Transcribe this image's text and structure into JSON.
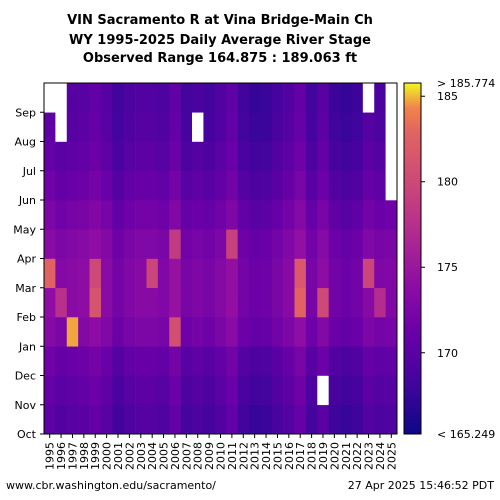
{
  "chart_data": {
    "type": "heatmap",
    "title_lines": [
      "VIN Sacramento R at Vina Bridge-Main Ch",
      "WY 1995-2025 Daily Average River Stage",
      "Observed Range 164.875 : 189.063 ft"
    ],
    "x_categories": [
      "1995",
      "1996",
      "1997",
      "1998",
      "1999",
      "2000",
      "2001",
      "2002",
      "2003",
      "2004",
      "2005",
      "2006",
      "2007",
      "2008",
      "2009",
      "2010",
      "2011",
      "2012",
      "2013",
      "2014",
      "2015",
      "2016",
      "2017",
      "2018",
      "2019",
      "2020",
      "2021",
      "2022",
      "2023",
      "2024",
      "2025"
    ],
    "y_months": [
      "Oct",
      "Nov",
      "Dec",
      "Jan",
      "Feb",
      "Mar",
      "Apr",
      "May",
      "Jun",
      "Jul",
      "Aug",
      "Sep"
    ],
    "colorbar": {
      "colormap": "plasma",
      "vmin": 165.249,
      "vmax": 185.774,
      "ticks": [
        170,
        175,
        180,
        185
      ],
      "tick_labels": [
        "170",
        "175",
        "180",
        "185"
      ],
      "top_label": "> 185.774",
      "bottom_label": "< 165.249"
    },
    "year_intensity": [
      0.3,
      0.22,
      0.26,
      0.28,
      0.34,
      0.26,
      0.12,
      0.2,
      0.24,
      0.24,
      0.2,
      0.34,
      0.14,
      0.18,
      0.14,
      0.22,
      0.32,
      0.12,
      0.06,
      0.08,
      0.16,
      0.24,
      0.36,
      0.14,
      0.28,
      0.1,
      0.06,
      0.1,
      0.24,
      0.18,
      0.2
    ],
    "month_intensity": [
      0.05,
      0.1,
      0.16,
      0.3,
      0.36,
      0.36,
      0.32,
      0.24,
      0.16,
      0.1,
      0.06,
      0.04
    ],
    "highlights": [
      {
        "year": "1995",
        "month": "Mar",
        "value": 0.85
      },
      {
        "year": "1996",
        "month": "Feb",
        "value": 0.6
      },
      {
        "year": "1997",
        "month": "Jan",
        "value": 0.95
      },
      {
        "year": "1999",
        "month": "Feb",
        "value": 0.78
      },
      {
        "year": "1999",
        "month": "Mar",
        "value": 0.72
      },
      {
        "year": "2004",
        "month": "Mar",
        "value": 0.7
      },
      {
        "year": "2006",
        "month": "Apr",
        "value": 0.65
      },
      {
        "year": "2006",
        "month": "Jan",
        "value": 0.75
      },
      {
        "year": "2011",
        "month": "Apr",
        "value": 0.68
      },
      {
        "year": "2017",
        "month": "Feb",
        "value": 0.85
      },
      {
        "year": "2017",
        "month": "Mar",
        "value": 0.8
      },
      {
        "year": "2019",
        "month": "Feb",
        "value": 0.72
      },
      {
        "year": "2023",
        "month": "Mar",
        "value": 0.7
      },
      {
        "year": "2024",
        "month": "Feb",
        "value": 0.58
      }
    ],
    "missing": [
      {
        "year": "1995",
        "month": "Sep"
      },
      {
        "year": "1996",
        "month": "Aug"
      },
      {
        "year": "1996",
        "month": "Sep"
      },
      {
        "year": "2008",
        "month": "Aug"
      },
      {
        "year": "2019",
        "month": "Nov"
      },
      {
        "year": "2023",
        "month": "Sep"
      },
      {
        "year": "2025",
        "month": "Jun"
      },
      {
        "year": "2025",
        "month": "Jul"
      },
      {
        "year": "2025",
        "month": "Aug"
      },
      {
        "year": "2025",
        "month": "Sep"
      }
    ]
  },
  "footer": {
    "source": "www.cbr.washington.edu/sacramento/",
    "timestamp": "27 Apr 2025 15:46:52 PDT"
  }
}
